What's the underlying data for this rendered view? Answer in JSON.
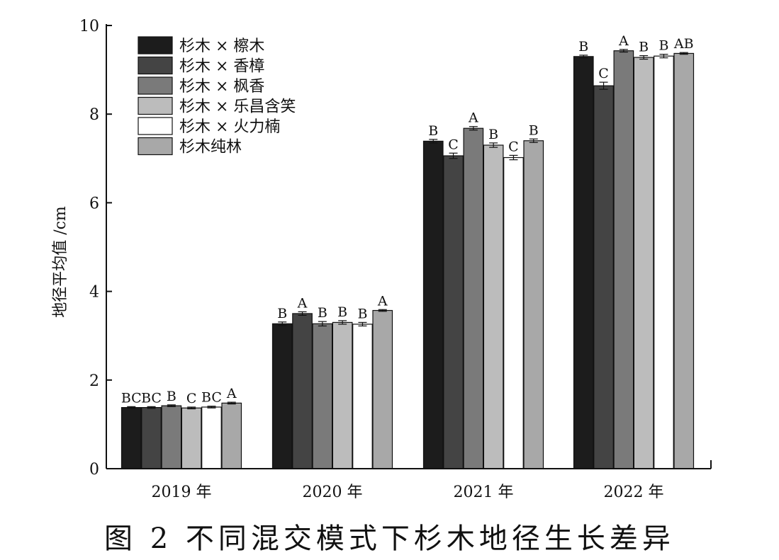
{
  "caption": "图 2 不同混交模式下杉木地径生长差异",
  "chart_data": {
    "type": "bar",
    "ylabel": "地径平均值 /cm",
    "xlabel": "",
    "ylim": [
      0,
      10
    ],
    "yticks": [
      "0",
      "2",
      "4",
      "6",
      "8",
      "10"
    ],
    "legend_position": "top-left",
    "categories": [
      "2019 年",
      "2020 年",
      "2021 年",
      "2022 年"
    ],
    "series": [
      {
        "name": "杉木 × 檫木",
        "color": "#1c1c1c",
        "values": [
          1.38,
          3.27,
          7.39,
          9.3
        ],
        "errors": [
          0.02,
          0.04,
          0.04,
          0.03
        ],
        "labels": [
          "BC",
          "B",
          "B",
          "B"
        ]
      },
      {
        "name": "杉木 × 香樟",
        "color": "#444444",
        "values": [
          1.38,
          3.5,
          7.06,
          8.64
        ],
        "errors": [
          0.02,
          0.04,
          0.06,
          0.08
        ],
        "labels": [
          "BC",
          "A",
          "C",
          "C"
        ]
      },
      {
        "name": "杉木 × 枫香",
        "color": "#7a7a7a",
        "values": [
          1.42,
          3.27,
          7.68,
          9.43
        ],
        "errors": [
          0.02,
          0.05,
          0.04,
          0.03
        ],
        "labels": [
          "B",
          "B",
          "A",
          "A"
        ]
      },
      {
        "name": "杉木 × 乐昌含笑",
        "color": "#bcbcbc",
        "values": [
          1.37,
          3.3,
          7.3,
          9.28
        ],
        "errors": [
          0.02,
          0.04,
          0.05,
          0.04
        ],
        "labels": [
          "C",
          "B",
          "B",
          "B"
        ]
      },
      {
        "name": "杉木 × 火力楠",
        "color": "#ffffff",
        "values": [
          1.39,
          3.26,
          7.02,
          9.31
        ],
        "errors": [
          0.02,
          0.04,
          0.05,
          0.04
        ],
        "labels": [
          "BC",
          "B",
          "C",
          "B"
        ]
      },
      {
        "name": "杉木纯林",
        "color": "#a8a8a8",
        "values": [
          1.48,
          3.57,
          7.4,
          9.37
        ],
        "errors": [
          0.02,
          0.02,
          0.04,
          0.02
        ],
        "labels": [
          "A",
          "A",
          "B",
          "AB"
        ]
      }
    ]
  }
}
